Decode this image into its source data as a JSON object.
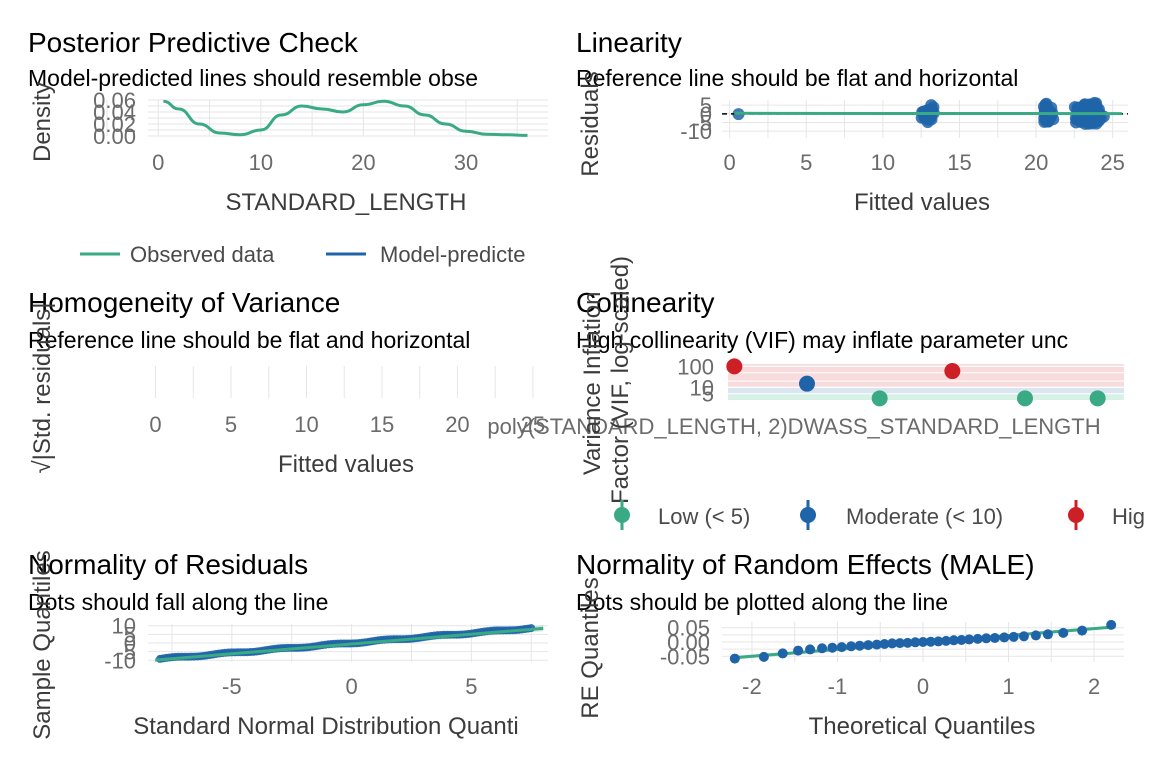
{
  "colors": {
    "green": "#3aaa85",
    "blue": "#1f64a8",
    "red": "#cd2026",
    "grid": "#e6e6e6",
    "panel_band_red": "#f6d3d5",
    "panel_band_blue": "#cfe0ee",
    "panel_band_green": "#cdeee0"
  },
  "chart_data": [
    {
      "id": "ppc",
      "type": "line",
      "title": "Posterior Predictive Check",
      "subtitle": "Model-predicted lines should resemble obse",
      "xlabel": "STANDARD_LENGTH",
      "ylabel": "Density",
      "xlim": [
        -1,
        38
      ],
      "ylim": [
        0,
        0.06
      ],
      "x_ticks": [
        "0",
        "10",
        "20",
        "30"
      ],
      "y_ticks": [
        "0.00",
        "0.02",
        "0.04",
        "0.06"
      ],
      "legend": [
        "Observed data",
        "Model-predicte"
      ],
      "legend_position": "bottom",
      "series": [
        {
          "name": "Observed data",
          "x": [
            0.5,
            2,
            4,
            6,
            8,
            10,
            12,
            14,
            16,
            18,
            20,
            22,
            24,
            26,
            28,
            30,
            32,
            34,
            36
          ],
          "y": [
            0.058,
            0.045,
            0.02,
            0.005,
            0.002,
            0.01,
            0.035,
            0.05,
            0.045,
            0.04,
            0.052,
            0.058,
            0.05,
            0.035,
            0.02,
            0.008,
            0.003,
            0.002,
            0.001
          ]
        }
      ]
    },
    {
      "id": "linearity",
      "type": "scatter",
      "title": "Linearity",
      "subtitle": "Reference line should be flat and horizontal",
      "xlabel": "Fitted values",
      "ylabel": "Residuals",
      "xlim": [
        -0.5,
        26
      ],
      "ylim": [
        -14,
        8
      ],
      "x_ticks": [
        "0",
        "5",
        "10",
        "15",
        "20",
        "25"
      ],
      "y_ticks": [
        "-10",
        "-5",
        "0",
        "5"
      ],
      "clusters": [
        {
          "x": 0.6,
          "spread_x": 0.1,
          "spread_y": 1,
          "n": 1
        },
        {
          "x": 13,
          "spread_x": 0.6,
          "spread_y": 6,
          "n": 40
        },
        {
          "x": 20.8,
          "spread_x": 0.4,
          "spread_y": 8,
          "n": 45
        },
        {
          "x": 23.5,
          "spread_x": 1.2,
          "spread_y": 8,
          "n": 120
        }
      ]
    },
    {
      "id": "homogeneity",
      "type": "scatter",
      "title": "Homogeneity of Variance",
      "subtitle": "Reference line should be flat and horizontal",
      "xlabel": "Fitted values",
      "ylabel": "√|Std. residuals|",
      "xlim": [
        -0.5,
        26
      ],
      "x_ticks": [
        "0",
        "5",
        "10",
        "15",
        "20",
        "25"
      ]
    },
    {
      "id": "collinearity",
      "type": "scatter",
      "title": "Collinearity",
      "subtitle": "High collinearity (VIF) may inflate parameter unc",
      "xlabel": "",
      "ylabel": "Variance Inflation\nFactor (VIF, log-scaled)",
      "y_ticks": [
        "5",
        "10",
        "100"
      ],
      "x_labels_overlapping": "poly(STANDARD_LENGTH, 2)DWASS_STANDARD_LENGTH",
      "points": [
        {
          "x": 1,
          "vif": 100,
          "group": "High"
        },
        {
          "x": 2,
          "vif": 15,
          "group": "Moderate"
        },
        {
          "x": 3,
          "vif": 3,
          "group": "Low"
        },
        {
          "x": 4,
          "vif": 60,
          "group": "High"
        },
        {
          "x": 5,
          "vif": 3,
          "group": "Low"
        },
        {
          "x": 6,
          "vif": 3,
          "group": "Low"
        }
      ],
      "legend": [
        "Low (< 5)",
        "Moderate (< 10)",
        "Hig"
      ]
    },
    {
      "id": "qq",
      "type": "scatter",
      "title": "Normality of Residuals",
      "subtitle": "Dots should fall along the line",
      "xlabel": "Standard Normal Distribution Quanti",
      "ylabel": "Sample Quantiles",
      "xlim": [
        -8.5,
        8.2
      ],
      "ylim": [
        -11,
        11
      ],
      "x_ticks": [
        "-5",
        "0",
        "5"
      ],
      "y_ticks": [
        "-10",
        "-5",
        "0",
        "5",
        "10"
      ]
    },
    {
      "id": "re",
      "type": "scatter",
      "title": "Normality of Random Effects (MALE)",
      "subtitle": "Dots should be plotted along the line",
      "xlabel": "Theoretical Quantiles",
      "ylabel": "RE Quantiles",
      "xlim": [
        -2.35,
        2.35
      ],
      "ylim": [
        -0.07,
        0.07
      ],
      "x_ticks": [
        "-2",
        "-1",
        "0",
        "1",
        "2"
      ],
      "y_ticks": [
        "-0.05",
        "0.00",
        "0.05"
      ],
      "x": [
        -2.2,
        -1.86,
        -1.64,
        -1.46,
        -1.32,
        -1.18,
        -1.06,
        -0.95,
        -0.84,
        -0.74,
        -0.64,
        -0.54,
        -0.45,
        -0.36,
        -0.27,
        -0.18,
        -0.09,
        0,
        0.09,
        0.18,
        0.27,
        0.36,
        0.45,
        0.54,
        0.64,
        0.74,
        0.84,
        0.95,
        1.06,
        1.18,
        1.32,
        1.46,
        1.64,
        1.86,
        2.2
      ],
      "y": [
        -0.058,
        -0.052,
        -0.04,
        -0.03,
        -0.026,
        -0.022,
        -0.02,
        -0.018,
        -0.015,
        -0.013,
        -0.011,
        -0.009,
        -0.007,
        -0.005,
        -0.004,
        -0.003,
        -0.001,
        0.0,
        0.001,
        0.002,
        0.004,
        0.006,
        0.007,
        0.009,
        0.011,
        0.013,
        0.014,
        0.016,
        0.018,
        0.02,
        0.023,
        0.027,
        0.032,
        0.04,
        0.06
      ]
    }
  ]
}
